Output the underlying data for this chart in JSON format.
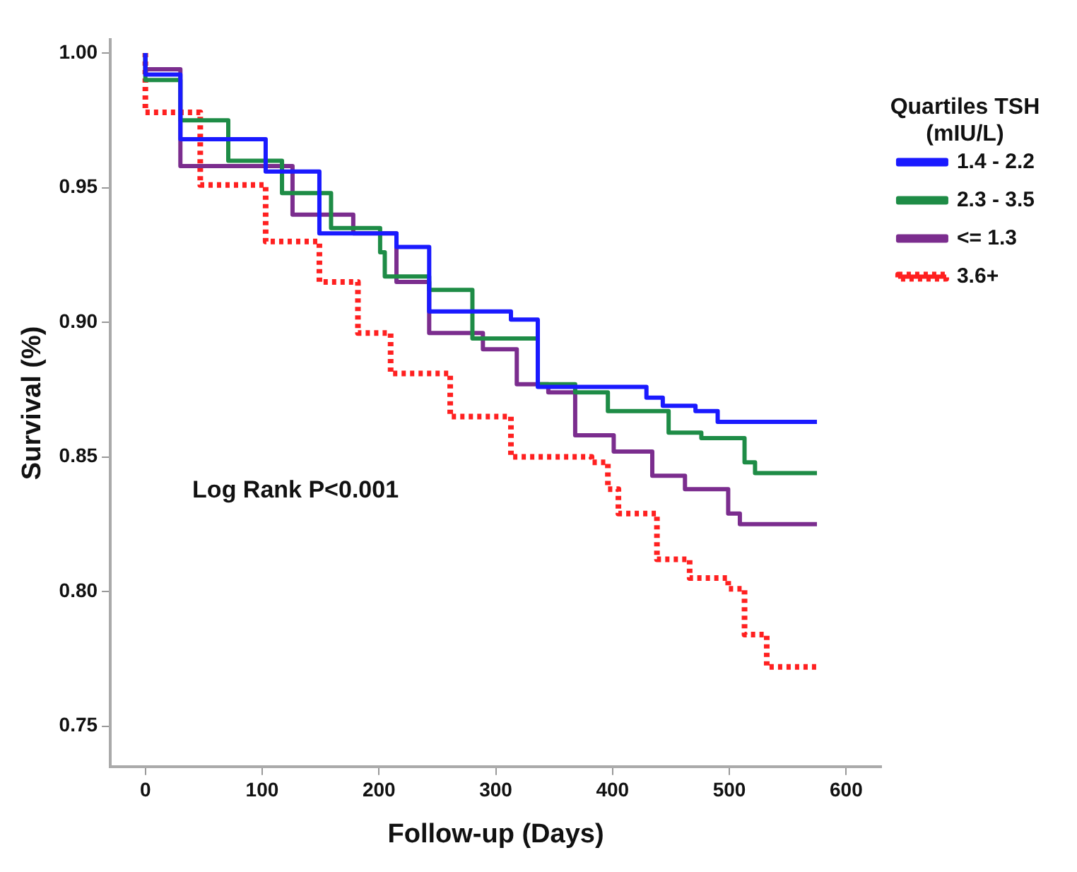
{
  "chart_data": {
    "type": "step",
    "xlabel": "Follow-up (Days)",
    "ylabel": "Survival (%)",
    "legend_title": "Quartiles TSH (mIU/L)",
    "legend": "right",
    "grid": false,
    "marker": "none",
    "xlim": [
      -30,
      630
    ],
    "xticks": [
      0,
      100,
      200,
      300,
      400,
      500,
      600
    ],
    "ylim": [
      0.735,
      1.005
    ],
    "yticks": [
      {
        "value": 0.75,
        "label": "0.75"
      },
      {
        "value": 0.8,
        "label": "0.80"
      },
      {
        "value": 0.85,
        "label": "0.85"
      },
      {
        "value": 0.9,
        "label": "0.90"
      },
      {
        "value": 0.95,
        "label": "0.95"
      },
      {
        "value": 1.0,
        "label": "1.00"
      }
    ],
    "annotations": [
      "Log Rank P<0.001"
    ],
    "series": [
      {
        "name": "1.4 - 2.2",
        "color": "#1a1aff",
        "line_style": "solid",
        "x": [
          0,
          30,
          103,
          149,
          215,
          243,
          313,
          336,
          429,
          443,
          471,
          490,
          525,
          575
        ],
        "values": [
          1.0,
          0.992,
          0.968,
          0.956,
          0.933,
          0.928,
          0.904,
          0.901,
          0.876,
          0.872,
          0.869,
          0.867,
          0.863,
          0.863
        ]
      },
      {
        "name": "2.3 - 3.5",
        "color": "#1e8c46",
        "line_style": "solid",
        "x": [
          0,
          30,
          71,
          117,
          159,
          201,
          205,
          243,
          280,
          336,
          368,
          396,
          448,
          476,
          513,
          522,
          540,
          575
        ],
        "values": [
          1.0,
          0.99,
          0.975,
          0.96,
          0.948,
          0.935,
          0.926,
          0.917,
          0.912,
          0.894,
          0.877,
          0.874,
          0.867,
          0.859,
          0.857,
          0.848,
          0.844,
          0.844
        ]
      },
      {
        "name": "<= 1.3",
        "color": "#7b2d8e",
        "line_style": "solid",
        "x": [
          0,
          30,
          126,
          178,
          215,
          243,
          289,
          318,
          345,
          368,
          401,
          434,
          462,
          499,
          509,
          532,
          575
        ],
        "values": [
          1.0,
          0.994,
          0.958,
          0.94,
          0.933,
          0.915,
          0.896,
          0.89,
          0.877,
          0.874,
          0.858,
          0.852,
          0.843,
          0.838,
          0.829,
          0.825,
          0.825
        ]
      },
      {
        "name": "3.6+",
        "color": "#ff2020",
        "line_style": "dotted",
        "x": [
          0,
          47,
          103,
          149,
          182,
          210,
          261,
          313,
          382,
          396,
          405,
          438,
          466,
          499,
          513,
          532,
          546,
          575
        ],
        "values": [
          1.0,
          0.978,
          0.951,
          0.93,
          0.915,
          0.896,
          0.881,
          0.865,
          0.85,
          0.848,
          0.838,
          0.829,
          0.812,
          0.805,
          0.801,
          0.784,
          0.772,
          0.772
        ]
      }
    ]
  }
}
